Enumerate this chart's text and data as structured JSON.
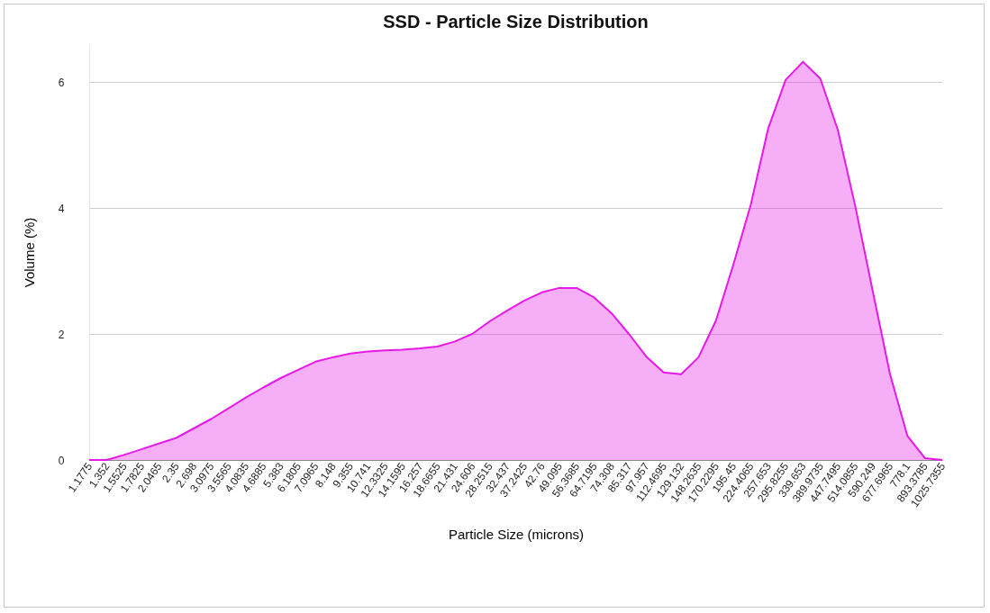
{
  "chart_data": {
    "type": "area",
    "title": "SSD - Particle Size Distribution",
    "xlabel": "Particle Size (microns)",
    "ylabel": "Volume (%)",
    "categories": [
      "1.1775",
      "1.352",
      "1.5525",
      "1.7825",
      "2.0465",
      "2.35",
      "2.698",
      "3.0975",
      "3.5565",
      "4.0835",
      "4.6885",
      "5.383",
      "6.1805",
      "7.0965",
      "8.148",
      "9.355",
      "10.741",
      "12.3325",
      "14.1595",
      "16.257",
      "18.6655",
      "21.431",
      "24.606",
      "28.2515",
      "32.437",
      "37.2425",
      "42.76",
      "49.095",
      "56.3685",
      "64.7195",
      "74.308",
      "85.317",
      "97.957",
      "112.4695",
      "129.132",
      "148.2635",
      "170.2295",
      "195.45",
      "224.4065",
      "257.653",
      "295.8255",
      "339.653",
      "389.9735",
      "447.7495",
      "514.0855",
      "590.249",
      "677.6965",
      "778.1",
      "893.3785",
      "1025.7355"
    ],
    "series": [
      {
        "color": "#e619e6",
        "values": [
          0,
          0,
          0.08,
          0.17,
          0.26,
          0.35,
          0.5,
          0.65,
          0.82,
          0.99,
          1.15,
          1.3,
          1.43,
          1.56,
          1.63,
          1.69,
          1.72,
          1.74,
          1.75,
          1.77,
          1.8,
          1.88,
          2.0,
          2.2,
          2.37,
          2.53,
          2.66,
          2.73,
          2.73,
          2.58,
          2.33,
          2.0,
          1.64,
          1.39,
          1.36,
          1.63,
          2.21,
          3.1,
          4.05,
          5.26,
          6.03,
          6.32,
          6.05,
          5.24,
          4.03,
          2.69,
          1.36,
          0.38,
          0.03,
          0
        ]
      }
    ],
    "ylim": [
      0,
      6.6
    ],
    "yticks": [
      0,
      2,
      4,
      6
    ],
    "grid": "y",
    "legend": false
  }
}
